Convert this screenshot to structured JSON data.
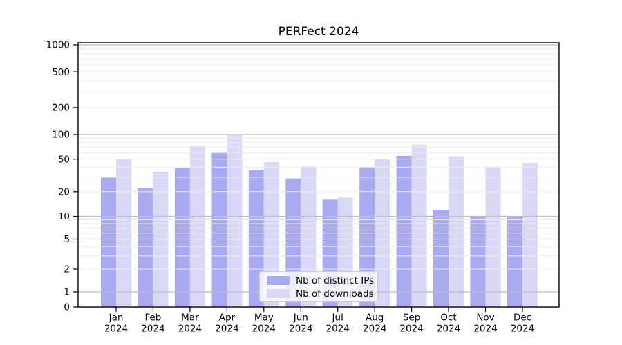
{
  "title": "PERFect 2024",
  "colors": {
    "ips_bar": "#aaaaf0",
    "downloads_bar": "#d9d9f7",
    "grid_major": "#bbbbbb",
    "grid_minor": "#ececec",
    "axis": "#000000",
    "legend_border": "#cccccc",
    "background": "#ffffff"
  },
  "legend": {
    "position": "lower center",
    "items": [
      {
        "label": "Nb of distinct IPs",
        "color": "#aaaaf0"
      },
      {
        "label": "Nb of downloads",
        "color": "#d9d9f7"
      }
    ]
  },
  "chart_data": {
    "type": "bar",
    "title": "PERFect 2024",
    "categories": [
      "Jan 2024",
      "Feb 2024",
      "Mar 2024",
      "Apr 2024",
      "May 2024",
      "Jun 2024",
      "Jul 2024",
      "Aug 2024",
      "Sep 2024",
      "Oct 2024",
      "Nov 2024",
      "Dec 2024"
    ],
    "series": [
      {
        "name": "Nb of distinct IPs",
        "color": "#aaaaf0",
        "values": [
          30,
          22,
          39,
          60,
          37,
          29,
          16,
          40,
          55,
          12,
          10,
          10
        ]
      },
      {
        "name": "Nb of downloads",
        "color": "#d9d9f7",
        "values": [
          50,
          35,
          72,
          100,
          46,
          41,
          17,
          50,
          75,
          54,
          40,
          45
        ]
      }
    ],
    "xlabel": "",
    "ylabel": "",
    "y_scale": "symlog",
    "y_ticks": [
      0,
      1,
      2,
      5,
      10,
      20,
      50,
      100,
      200,
      500,
      1000
    ],
    "ylim": [
      0,
      1000
    ],
    "grid": "horizontal major+minor log gridlines, drawn above bars",
    "legend_position": "lower center inside plot"
  }
}
